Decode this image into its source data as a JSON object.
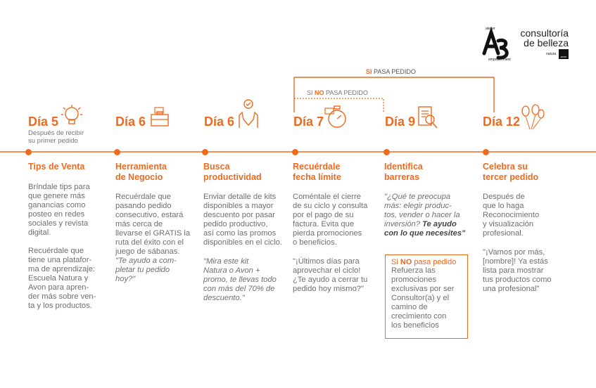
{
  "brand": {
    "line1": "consultoría",
    "line2": "de belleza",
    "partner1": "natura",
    "partner2": "avon",
    "emblem_top": "atelier",
    "emblem_bottom": "empowerment"
  },
  "flow": {
    "si_prefix": "SI",
    "si_rest": " PASA PEDIDO",
    "no_si": "SI ",
    "no_no": "NO",
    "no_rest": " PASA PEDIDO"
  },
  "days": [
    {
      "label": "Día 5",
      "sub1": "Después de recibir",
      "sub2": "su primer pedido",
      "title1": "Tips de Venta",
      "title2": "",
      "p1": [
        "Bríndale tips para",
        "que genere más",
        "ganancias como",
        "posteo en redes",
        "sociales y revista",
        "digital."
      ],
      "p2": [
        "Recuérdale que",
        "tiene una platafor-",
        "ma de aprendizaje:",
        "Escuela Natura y",
        "Avon para apren-",
        "der más sobre ven-",
        "ta y los productos."
      ]
    },
    {
      "label": "Día 6",
      "title1": "Herramienta",
      "title2": "de Negocio",
      "p1": [
        "Recuérdale que",
        "pasando pedido",
        "consecutivo, estará",
        "más cerca de",
        "llevarse el GRATIS la",
        "ruta del éxito con el",
        "juego de sábanas."
      ],
      "q": [
        "\"Te ayudo a com-",
        "pletar tu pedido",
        "hoy?\""
      ]
    },
    {
      "label": "Día 6",
      "title1": "Busca",
      "title2": "productividad",
      "p1": [
        "Enviar detalle de kits",
        "disponibles a mayor",
        "descuento por pasar",
        "pedido productivo,",
        "así como las promos",
        "disponibles en el ciclo."
      ],
      "q": [
        "\"Mira este kit",
        "Natura o Avon +",
        "promo, te llevas todo",
        "con más del 70% de",
        "descuento.\""
      ]
    },
    {
      "label": "Día 7",
      "title1": "Recuérdale",
      "title2": "fecha límite",
      "p1": [
        "Coméntale el cierre",
        "de su ciclo y consulta",
        "por el pago de su",
        "factura. Evita que",
        "pierda promociones",
        "o beneficios."
      ],
      "p2": [
        "\"¡Últimos días para",
        "aprovechar el ciclo!",
        "¿Te ayudo a cerrar tu",
        "pedido hoy mismo?\""
      ]
    },
    {
      "label": "Día 9",
      "title1": "Identifica",
      "title2": "barreras",
      "q": [
        "\"¿Qué te preocupa",
        "más: elegir produc-",
        "tos, vender o hacer la",
        "inversión? "
      ],
      "q_bold1": "Te ayudo",
      "q_bold2": "con lo que necesites\"",
      "box_si": "Si ",
      "box_no": "NO",
      "box_rest": " pasa pedido",
      "box": [
        "Refuerza las",
        "promociones",
        "exclusivas por ser",
        "Consultor(a) y el",
        "camino de",
        "crecimiento con",
        "los beneficios"
      ]
    },
    {
      "label": "Día 12",
      "title1": "Celebra su",
      "title2": "tercer pedido",
      "p1": [
        "Después de",
        "que lo haga",
        "Reconocimiento",
        "y visualización",
        "profesional."
      ],
      "p2": [
        "\"¡Vamos por más,",
        "[nombre]! Ya estás",
        "lista para mostrar",
        "tus productos como",
        "una profesional\""
      ]
    }
  ]
}
